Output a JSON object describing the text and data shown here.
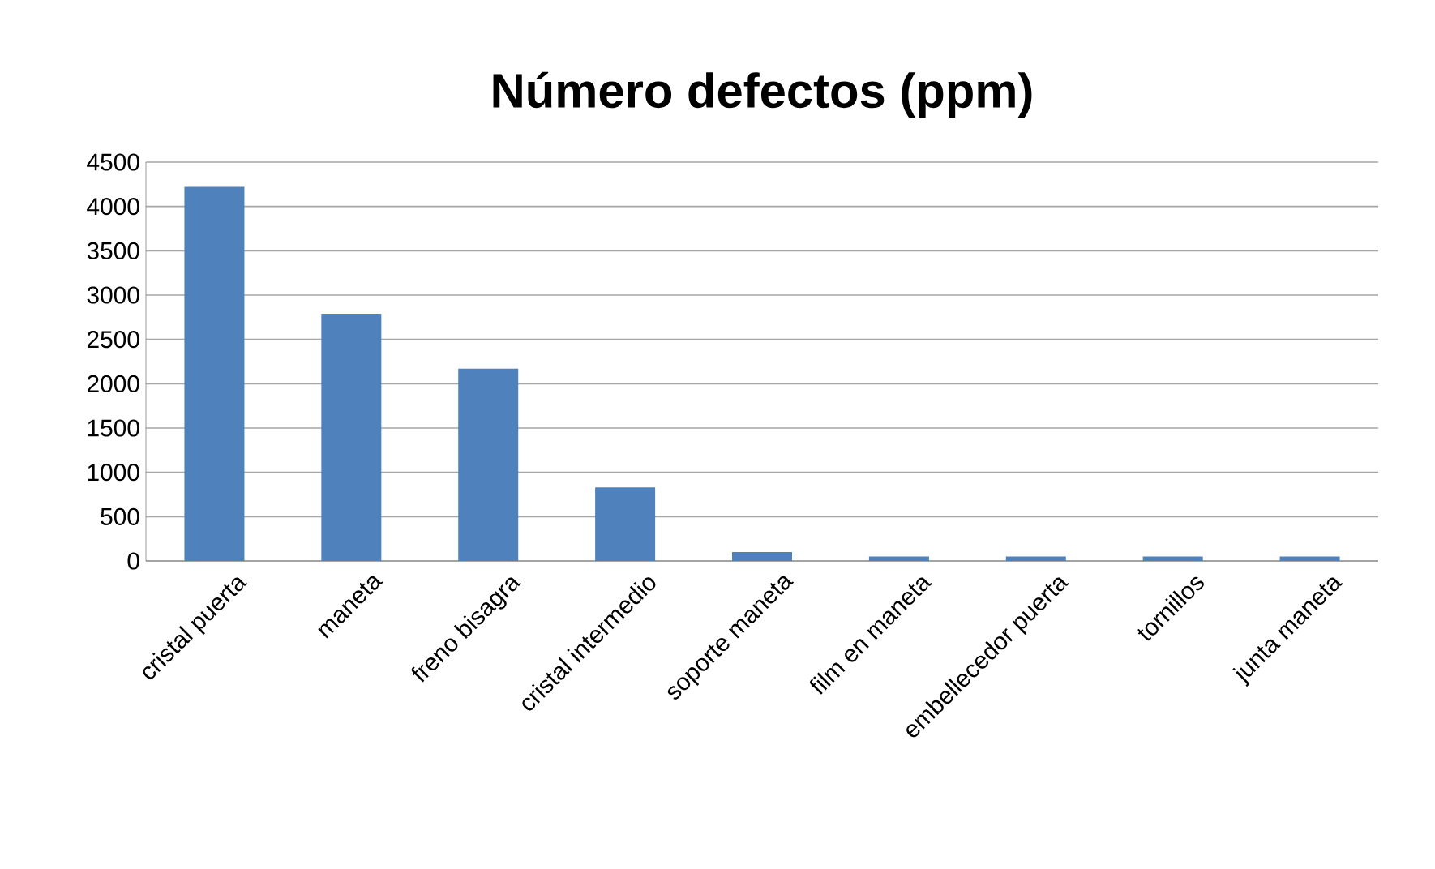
{
  "chart_data": {
    "type": "bar",
    "title": "Número defectos (ppm)",
    "categories": [
      "cristal puerta",
      "maneta",
      "freno bisagra",
      "cristal intermedio",
      "soporte maneta",
      "film en maneta",
      "embellecedor puerta",
      "tornillos",
      "junta maneta"
    ],
    "values": [
      4220,
      2790,
      2170,
      830,
      100,
      50,
      50,
      50,
      50
    ],
    "color": "#4f81bd",
    "ylim": [
      0,
      4500
    ],
    "yticks": [
      0,
      500,
      1000,
      1500,
      2000,
      2500,
      3000,
      3500,
      4000,
      4500
    ],
    "grid": "y"
  }
}
